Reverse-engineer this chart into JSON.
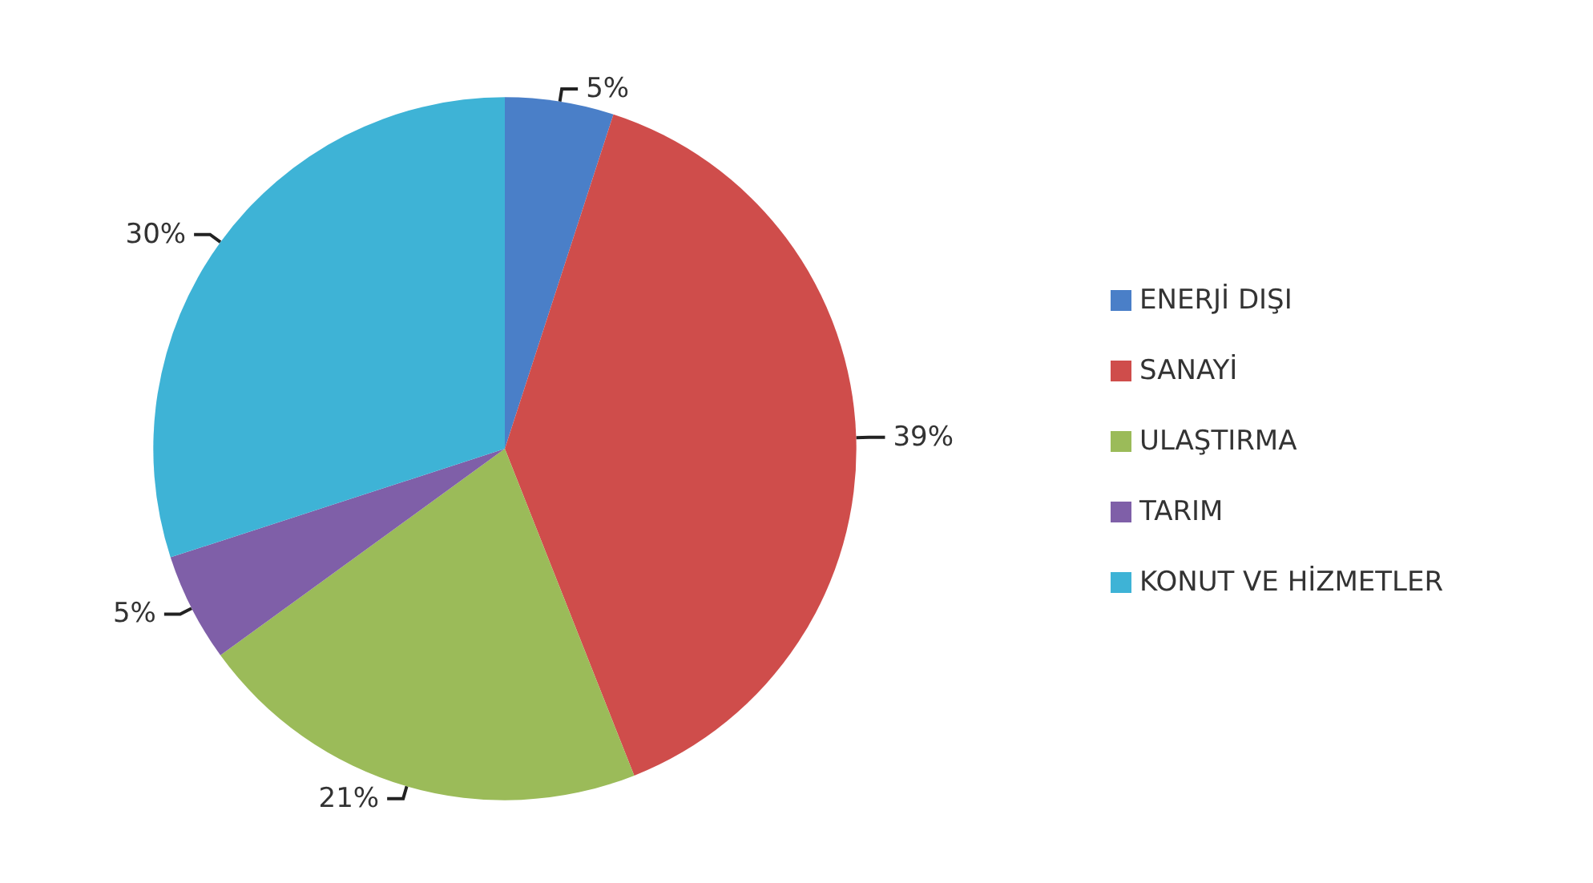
{
  "chart_data": {
    "type": "pie",
    "categories": [
      "ENERJİ DIŞI",
      "SANAYİ",
      "ULAŞTIRMA",
      "TARIM",
      "KONUT VE HİZMETLER"
    ],
    "values": [
      5,
      39,
      21,
      5,
      30
    ],
    "colors": [
      "#4a7fc8",
      "#cf4d4b",
      "#9bbb59",
      "#7f5fa8",
      "#3eb3d6"
    ],
    "value_labels": [
      "5%",
      "39%",
      "21%",
      "5%",
      "30%"
    ],
    "legend": "right"
  }
}
